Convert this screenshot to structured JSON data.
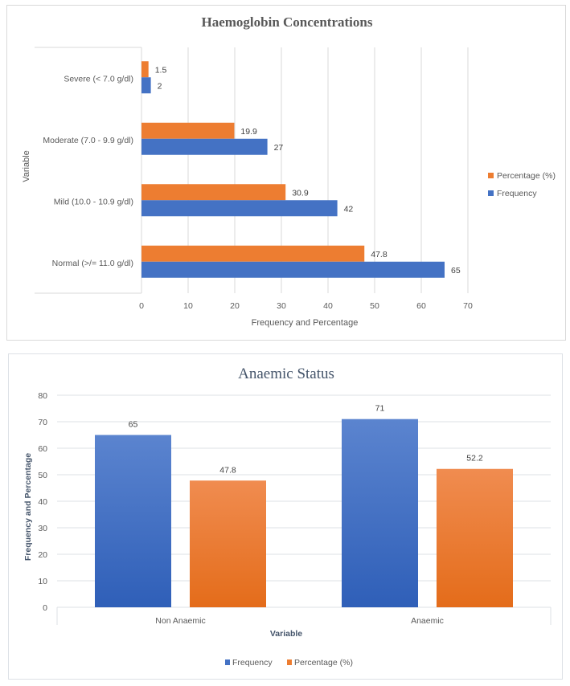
{
  "chart_data": [
    {
      "type": "bar",
      "orientation": "horizontal",
      "title": "Haemoglobin Concentrations",
      "categories": [
        "Severe (< 7.0 g/dl)",
        "Moderate (7.0 - 9.9 g/dl)",
        "Mild (10.0 - 10.9 g/dl)",
        "Normal (>/= 11.0 g/dl)"
      ],
      "series": [
        {
          "name": "Percentage (%)",
          "color": "#ed7d31",
          "values": [
            1.5,
            19.9,
            30.9,
            47.8
          ],
          "labels": [
            "1.5",
            "19.9",
            "30.9",
            "47.8"
          ]
        },
        {
          "name": "Frequency",
          "color": "#4472c4",
          "values": [
            2,
            27,
            42,
            65
          ],
          "labels": [
            "2",
            "27",
            "42",
            "65"
          ]
        }
      ],
      "xlabel": "Frequency and Percentage",
      "ylabel": "Variable",
      "xlim": [
        0,
        70
      ],
      "xticks": [
        "0",
        "10",
        "20",
        "30",
        "40",
        "50",
        "60",
        "70"
      ],
      "grid": true,
      "legend_position": "right",
      "legend": [
        "Percentage (%)",
        "Frequency"
      ]
    },
    {
      "type": "bar",
      "orientation": "vertical",
      "title": "Anaemic  Status",
      "categories": [
        "Non Anaemic",
        "Anaemic"
      ],
      "series": [
        {
          "name": "Frequency",
          "color": "#4472c4",
          "values": [
            65,
            71
          ],
          "labels": [
            "65",
            "71"
          ]
        },
        {
          "name": "Percentage (%)",
          "color": "#ed7d31",
          "values": [
            47.8,
            52.2
          ],
          "labels": [
            "47.8",
            "52.2"
          ]
        }
      ],
      "xlabel": "Variable",
      "ylabel": "Frequency and Percentage",
      "ylim": [
        0,
        80
      ],
      "yticks": [
        "0",
        "10",
        "20",
        "30",
        "40",
        "50",
        "60",
        "70",
        "80"
      ],
      "grid": true,
      "legend_position": "bottom",
      "legend": [
        "Frequency",
        "Percentage (%)"
      ]
    }
  ]
}
